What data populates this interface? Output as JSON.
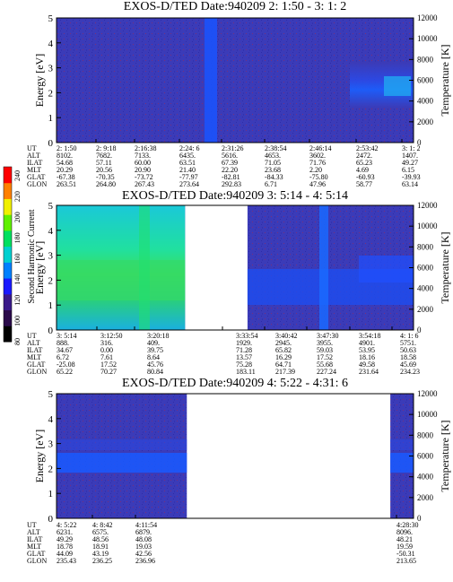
{
  "panels": [
    {
      "title": "EXOS-D/TED   Date:940209  2: 1:50 - 3: 1: 2",
      "ylabel": "Energy [eV]",
      "ylabel_right": "Temperature [K]",
      "yticks": [
        "0",
        "1",
        "2",
        "3",
        "4",
        "5"
      ],
      "yticks_right": [
        "0",
        "2000",
        "4000",
        "6000",
        "8000",
        "10000",
        "12000"
      ],
      "row_labels": [
        "UT",
        "ALT",
        "ILAT",
        "MLT",
        "GLAT",
        "GLON"
      ],
      "columns": [
        [
          "2: 1:50",
          "8102.",
          "54.68",
          "20.29",
          "-67.38",
          "263.51"
        ],
        [
          "2: 9:18",
          "7682.",
          "57.11",
          "20.56",
          "-70.35",
          "264.80"
        ],
        [
          "2:16:38",
          "7133.",
          "60.00",
          "20.90",
          "-73.72",
          "267.43"
        ],
        [
          "2:24: 6",
          "6435.",
          "63.51",
          "21.40",
          "-77.97",
          "273.64"
        ],
        [
          "2:31:26",
          "5616.",
          "67.39",
          "22.20",
          "-82.81",
          "292.83"
        ],
        [
          "2:38:54",
          "4653.",
          "71.05",
          "23.68",
          "-84.33",
          "6.71"
        ],
        [
          "2:46:14",
          "3602.",
          "71.76",
          "2.20",
          "-75.80",
          "47.96"
        ],
        [
          "2:53:42",
          "2472.",
          "65.23",
          "4.69",
          "-60.93",
          "58.77"
        ],
        [
          "3: 1: 2",
          "1407.",
          "49.27",
          "6.15",
          "-39.93",
          "63.14"
        ]
      ],
      "segments": [
        [
          0,
          1
        ]
      ]
    },
    {
      "title": "EXOS-D/TED   Date:940209  3: 5:14 - 4: 5:14",
      "ylabel": "Energy [eV]",
      "ylabel_right": "Temperature [K]",
      "yticks": [
        "0",
        "1",
        "2",
        "3",
        "4",
        "5"
      ],
      "yticks_right": [
        "0",
        "2000",
        "4000",
        "6000",
        "8000",
        "10000",
        "12000"
      ],
      "row_labels": [
        "UT",
        "ALT",
        "ILAT",
        "MLT",
        "GLAT",
        "GLON"
      ],
      "columns": [
        [
          "3: 5:14",
          "888.",
          "34.67",
          "6.72",
          "-25.08",
          "65.22"
        ],
        [
          "3:12:50",
          "316.",
          "0.00",
          "7.61",
          "17.52",
          "70.27"
        ],
        [
          "3:20:18",
          "409.",
          "39.75",
          "8.64",
          "45.76",
          "80.84"
        ],
        [
          "3:33:54",
          "1929.",
          "71.28",
          "13.57",
          "75.28",
          "183.11"
        ],
        [
          "3:40:42",
          "2945.",
          "65.82",
          "16.29",
          "64.71",
          "217.39"
        ],
        [
          "3:47:30",
          "3955.",
          "59.03",
          "17.52",
          "55.68",
          "227.24"
        ],
        [
          "3:54:18",
          "4901.",
          "53.95",
          "18.16",
          "49.58",
          "231.64"
        ],
        [
          "4: 1: 6",
          "5751.",
          "50.63",
          "18.58",
          "45.69",
          "234.23"
        ]
      ],
      "segments": [
        [
          0,
          0.36
        ],
        [
          0.535,
          1
        ]
      ],
      "colorbar": {
        "label": "Second Harmonic Current",
        "ticks": [
          "80",
          "100",
          "120",
          "140",
          "160",
          "180",
          "200",
          "220",
          "240"
        ],
        "colors": [
          "#000000",
          "#2a0a4a",
          "#3a1a8a",
          "#1a1aff",
          "#0080ff",
          "#00d0d0",
          "#00e060",
          "#60f000",
          "#f0f000",
          "#ff8000",
          "#ff0000"
        ]
      }
    },
    {
      "title": "EXOS-D/TED   Date:940209  4: 5:22 - 4:31: 6",
      "ylabel": "Energy [eV]",
      "ylabel_right": "Temperature [K]",
      "yticks": [
        "0",
        "1",
        "2",
        "3",
        "4",
        "5"
      ],
      "yticks_right": [
        "0",
        "2000",
        "4000",
        "6000",
        "8000",
        "10000",
        "12000"
      ],
      "row_labels": [
        "UT",
        "ALT",
        "ILAT",
        "MLT",
        "GLAT",
        "GLON"
      ],
      "columns": [
        [
          "4: 5:22",
          "6231.",
          "49.29",
          "18.78",
          "44.09",
          "235.43"
        ],
        [
          "4: 8:42",
          "6575.",
          "48.56",
          "18.91",
          "43.19",
          "236.25"
        ],
        [
          "4:11:54",
          "6879.",
          "48.08",
          "19.03",
          "42.56",
          "236.96"
        ],
        [
          "4:28:30",
          "8096.",
          "48.21",
          "19.59",
          "-50.31",
          "213.65"
        ]
      ],
      "segments": [
        [
          0,
          0.365
        ],
        [
          0.935,
          1
        ]
      ]
    }
  ]
}
